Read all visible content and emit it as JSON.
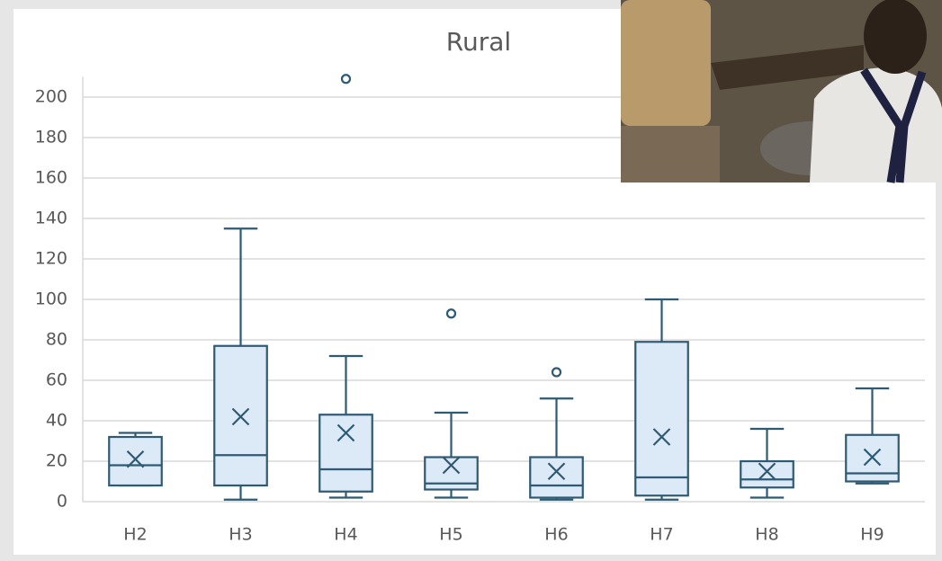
{
  "chart_data": {
    "type": "box",
    "title": "Rural",
    "categories": [
      "H2",
      "H3",
      "H4",
      "H5",
      "H6",
      "H7",
      "H8",
      "H9"
    ],
    "min": [
      8,
      1,
      2,
      2,
      1,
      1,
      2,
      9
    ],
    "q1": [
      8,
      8,
      5,
      6,
      2,
      3,
      7,
      10
    ],
    "median": [
      18,
      23,
      16,
      9,
      8,
      12,
      11,
      14
    ],
    "q3": [
      32,
      77,
      43,
      22,
      22,
      79,
      20,
      33
    ],
    "max": [
      34,
      135,
      72,
      44,
      51,
      100,
      36,
      56
    ],
    "mean": [
      21,
      42,
      34,
      18,
      15,
      32,
      15,
      22
    ],
    "outliers": [
      [],
      [],
      [
        209
      ],
      [
        93
      ],
      [
        64
      ],
      [],
      [],
      []
    ],
    "color": "#2e5a73",
    "box_fill": "#dce9f6",
    "ylim": [
      0,
      210
    ],
    "yticks": [
      0,
      20,
      40,
      60,
      80,
      100,
      120,
      140,
      160,
      180,
      200
    ],
    "grid": true
  }
}
